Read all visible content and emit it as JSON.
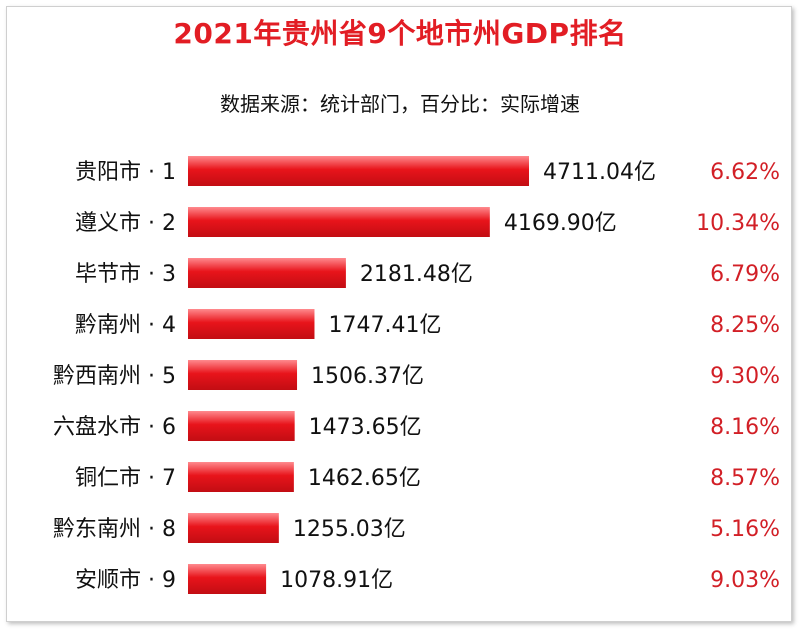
{
  "title": "2021年贵州省9个地市州GDP排名",
  "subtitle": "数据来源：统计部门，百分比：实际增速",
  "colors": {
    "bar": "#e8141b",
    "bar_light": "#ff8a8e",
    "growth": "#d21f26",
    "title": "#e21d24",
    "text": "#111111"
  },
  "chart_data": {
    "type": "bar",
    "orientation": "horizontal",
    "title": "2021年贵州省9个地市州GDP排名",
    "subtitle": "数据来源：统计部门，百分比：实际增速",
    "categories": [
      "贵阳市 · 1",
      "遵义市 · 2",
      "毕节市 · 3",
      "黔南州 · 4",
      "黔西南州 · 5",
      "六盘水市 · 6",
      "铜仁市 · 7",
      "黔东南州 · 8",
      "安顺市 · 9"
    ],
    "values": [
      4711.04,
      4169.9,
      2181.48,
      1747.41,
      1506.37,
      1473.65,
      1462.65,
      1255.03,
      1078.91
    ],
    "value_labels": [
      "4711.04亿",
      "4169.90亿",
      "2181.48亿",
      "1747.41亿",
      "1506.37亿",
      "1473.65亿",
      "1462.65亿",
      "1255.03亿",
      "1078.91亿"
    ],
    "growth_labels": [
      "6.62%",
      "10.34%",
      "6.79%",
      "8.25%",
      "9.30%",
      "8.16%",
      "8.57%",
      "5.16%",
      "9.03%"
    ],
    "xlim": [
      0,
      4711.04
    ],
    "grid": false,
    "legend": "none"
  }
}
